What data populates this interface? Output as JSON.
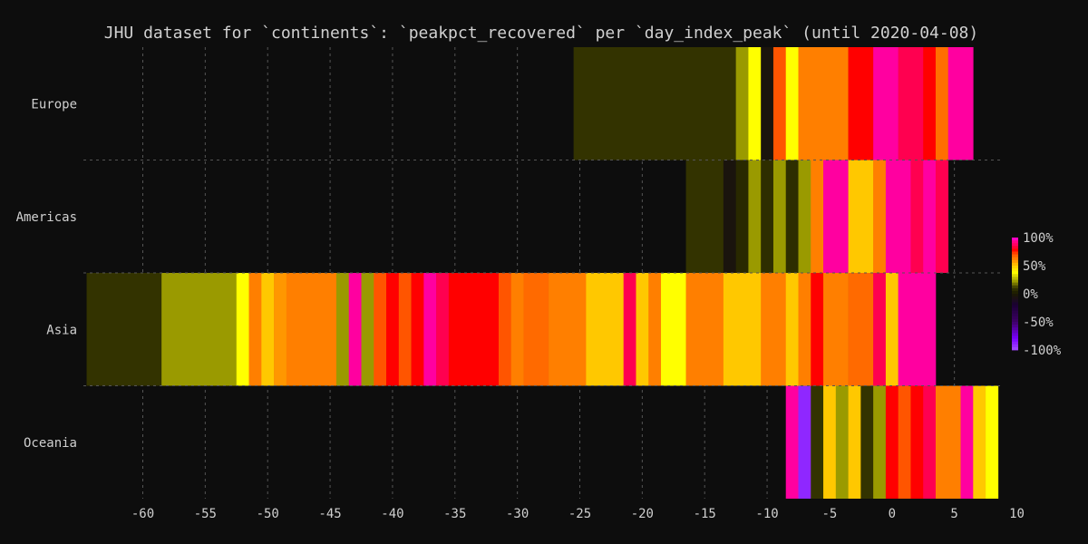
{
  "chart_data": {
    "type": "heatmap",
    "title": "JHU dataset for `continents`: `peakpct_recovered` per `day_index_peak` (until 2020-04-08)",
    "xlabel": "",
    "ylabel": "",
    "xlim": [
      -64,
      10
    ],
    "xticks": [
      -60,
      -55,
      -50,
      -45,
      -40,
      -35,
      -30,
      -25,
      -20,
      -15,
      -10,
      -5,
      0,
      5,
      10
    ],
    "grid": true,
    "categories": [
      "Europe",
      "Americas",
      "Asia",
      "Oceania"
    ],
    "colorbar": {
      "ticks": [
        "100%",
        "50%",
        "0%",
        "-50%",
        "-100%"
      ],
      "range": [
        -100,
        100
      ],
      "colors": [
        "#ff00ff",
        "#ff1493",
        "#ff0000",
        "#ff6a00",
        "#ffc800",
        "#ffff00",
        "#9a9a00",
        "#333300",
        "#1a0033",
        "#3d0066",
        "#7a00ff",
        "#a44dff"
      ]
    },
    "rows": [
      {
        "name": "Europe",
        "segments": [
          {
            "x0": -25.5,
            "x1": -12.5,
            "v": 10
          },
          {
            "x0": -12.5,
            "x1": -11.5,
            "v": 22
          },
          {
            "x0": -11.5,
            "x1": -10.5,
            "v": 38
          },
          {
            "x0": -10.5,
            "x1": -9.5,
            "v": -5
          },
          {
            "x0": -9.5,
            "x1": -8.5,
            "v": 70
          },
          {
            "x0": -8.5,
            "x1": -7.5,
            "v": 38
          },
          {
            "x0": -7.5,
            "x1": -3.5,
            "v": 62
          },
          {
            "x0": -3.5,
            "x1": -1.5,
            "v": 78
          },
          {
            "x0": -1.5,
            "x1": 0.5,
            "v": 96
          },
          {
            "x0": 0.5,
            "x1": 2.5,
            "v": 85
          },
          {
            "x0": 2.5,
            "x1": 3.5,
            "v": 78
          },
          {
            "x0": 3.5,
            "x1": 4.5,
            "v": 65
          },
          {
            "x0": 4.5,
            "x1": 6.5,
            "v": 96
          }
        ]
      },
      {
        "name": "Americas",
        "segments": [
          {
            "x0": -16.5,
            "x1": -13.5,
            "v": 10
          },
          {
            "x0": -13.5,
            "x1": -12.5,
            "v": -5
          },
          {
            "x0": -12.5,
            "x1": -11.5,
            "v": 6
          },
          {
            "x0": -11.5,
            "x1": -10.5,
            "v": 22
          },
          {
            "x0": -10.5,
            "x1": -9.5,
            "v": 8
          },
          {
            "x0": -9.5,
            "x1": -8.5,
            "v": 22
          },
          {
            "x0": -8.5,
            "x1": -7.5,
            "v": 8
          },
          {
            "x0": -7.5,
            "x1": -6.5,
            "v": 22
          },
          {
            "x0": -6.5,
            "x1": -5.5,
            "v": 62
          },
          {
            "x0": -5.5,
            "x1": -3.5,
            "v": 96
          },
          {
            "x0": -3.5,
            "x1": -1.5,
            "v": 50
          },
          {
            "x0": -1.5,
            "x1": -0.5,
            "v": 62
          },
          {
            "x0": -0.5,
            "x1": 1.5,
            "v": 96
          },
          {
            "x0": 1.5,
            "x1": 2.5,
            "v": 85
          },
          {
            "x0": 2.5,
            "x1": 3.5,
            "v": 96
          },
          {
            "x0": 3.5,
            "x1": 4.5,
            "v": 85
          }
        ]
      },
      {
        "name": "Asia",
        "segments": [
          {
            "x0": -64.5,
            "x1": -58.5,
            "v": 10
          },
          {
            "x0": -58.5,
            "x1": -52.5,
            "v": 22
          },
          {
            "x0": -52.5,
            "x1": -51.5,
            "v": 38
          },
          {
            "x0": -51.5,
            "x1": -50.5,
            "v": 62
          },
          {
            "x0": -50.5,
            "x1": -49.5,
            "v": 50
          },
          {
            "x0": -49.5,
            "x1": -48.5,
            "v": 58
          },
          {
            "x0": -48.5,
            "x1": -44.5,
            "v": 62
          },
          {
            "x0": -44.5,
            "x1": -43.5,
            "v": 22
          },
          {
            "x0": -43.5,
            "x1": -42.5,
            "v": 96
          },
          {
            "x0": -42.5,
            "x1": -41.5,
            "v": 22
          },
          {
            "x0": -41.5,
            "x1": -40.5,
            "v": 70
          },
          {
            "x0": -40.5,
            "x1": -39.5,
            "v": 78
          },
          {
            "x0": -39.5,
            "x1": -38.5,
            "v": 70
          },
          {
            "x0": -38.5,
            "x1": -37.5,
            "v": 78
          },
          {
            "x0": -37.5,
            "x1": -36.5,
            "v": 96
          },
          {
            "x0": -36.5,
            "x1": -35.5,
            "v": 85
          },
          {
            "x0": -35.5,
            "x1": -31.5,
            "v": 78
          },
          {
            "x0": -31.5,
            "x1": -30.5,
            "v": 70
          },
          {
            "x0": -30.5,
            "x1": -29.5,
            "v": 62
          },
          {
            "x0": -29.5,
            "x1": -27.5,
            "v": 66
          },
          {
            "x0": -27.5,
            "x1": -24.5,
            "v": 62
          },
          {
            "x0": -24.5,
            "x1": -21.5,
            "v": 50
          },
          {
            "x0": -21.5,
            "x1": -20.5,
            "v": 85
          },
          {
            "x0": -20.5,
            "x1": -19.5,
            "v": 50
          },
          {
            "x0": -19.5,
            "x1": -18.5,
            "v": 62
          },
          {
            "x0": -18.5,
            "x1": -16.5,
            "v": 38
          },
          {
            "x0": -16.5,
            "x1": -13.5,
            "v": 62
          },
          {
            "x0": -13.5,
            "x1": -10.5,
            "v": 50
          },
          {
            "x0": -10.5,
            "x1": -8.5,
            "v": 62
          },
          {
            "x0": -8.5,
            "x1": -7.5,
            "v": 50
          },
          {
            "x0": -7.5,
            "x1": -6.5,
            "v": 62
          },
          {
            "x0": -6.5,
            "x1": -5.5,
            "v": 78
          },
          {
            "x0": -5.5,
            "x1": -3.5,
            "v": 62
          },
          {
            "x0": -3.5,
            "x1": -1.5,
            "v": 66
          },
          {
            "x0": -1.5,
            "x1": -0.5,
            "v": 85
          },
          {
            "x0": -0.5,
            "x1": 0.5,
            "v": 50
          },
          {
            "x0": 0.5,
            "x1": 3.5,
            "v": 96
          }
        ]
      },
      {
        "name": "Oceania",
        "segments": [
          {
            "x0": -8.5,
            "x1": -7.5,
            "v": 96
          },
          {
            "x0": -7.5,
            "x1": -6.5,
            "v": -90
          },
          {
            "x0": -6.5,
            "x1": -5.5,
            "v": 10
          },
          {
            "x0": -5.5,
            "x1": -4.5,
            "v": 50
          },
          {
            "x0": -4.5,
            "x1": -3.5,
            "v": 22
          },
          {
            "x0": -3.5,
            "x1": -2.5,
            "v": 50
          },
          {
            "x0": -2.5,
            "x1": -1.5,
            "v": 10
          },
          {
            "x0": -1.5,
            "x1": -0.5,
            "v": 22
          },
          {
            "x0": -0.5,
            "x1": 0.5,
            "v": 78
          },
          {
            "x0": 0.5,
            "x1": 1.5,
            "v": 70
          },
          {
            "x0": 1.5,
            "x1": 2.5,
            "v": 78
          },
          {
            "x0": 2.5,
            "x1": 3.5,
            "v": 85
          },
          {
            "x0": 3.5,
            "x1": 5.5,
            "v": 62
          },
          {
            "x0": 5.5,
            "x1": 6.5,
            "v": 96
          },
          {
            "x0": 6.5,
            "x1": 7.5,
            "v": 50
          },
          {
            "x0": 7.5,
            "x1": 8.5,
            "v": 38
          }
        ]
      }
    ]
  }
}
